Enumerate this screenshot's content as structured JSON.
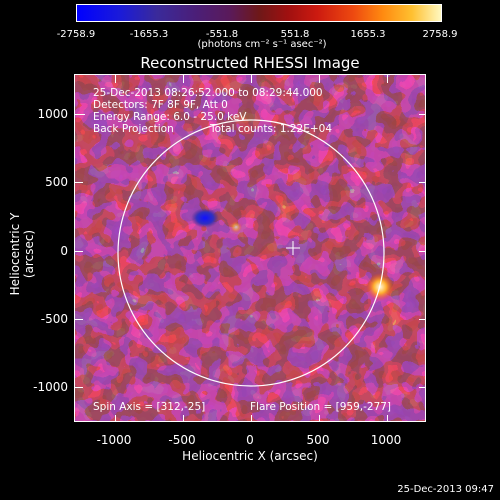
{
  "colorbar": {
    "labels": [
      "-2758.9",
      "-1655.3",
      "-551.8",
      "551.8",
      "1655.3",
      "2758.9"
    ],
    "units": "(photons cm⁻² s⁻¹ asec⁻²)"
  },
  "title": "Reconstructed RHESSI Image",
  "info": {
    "time_range": "25-Dec-2013 08:26:52.000 to 08:29:44.000",
    "detectors": "Detectors: 7F 8F 9F, Att 0",
    "energy": "Energy Range: 6.0 - 25.0 keV",
    "method": "Back Projection",
    "counts": "Total counts: 1.22E+04",
    "spin_axis": "Spin Axis = [312,-25]",
    "flare_position": "Flare Position = [959,-277]"
  },
  "axes": {
    "x_title": "Heliocentric X (arcsec)",
    "y_title": "Heliocentric Y (arcsec)",
    "x_ticks": [
      "-1000",
      "-500",
      "0",
      "500",
      "1000"
    ],
    "y_ticks": [
      "1000",
      "500",
      "0",
      "-500",
      "-1000"
    ]
  },
  "timestamp": "25-Dec-2013 09:47",
  "colors": {
    "background": "#000000",
    "negative": "#0000ff",
    "neutral": "#5a1a5a",
    "positive": "#cc1a10",
    "peak": "#fff8c0"
  }
}
